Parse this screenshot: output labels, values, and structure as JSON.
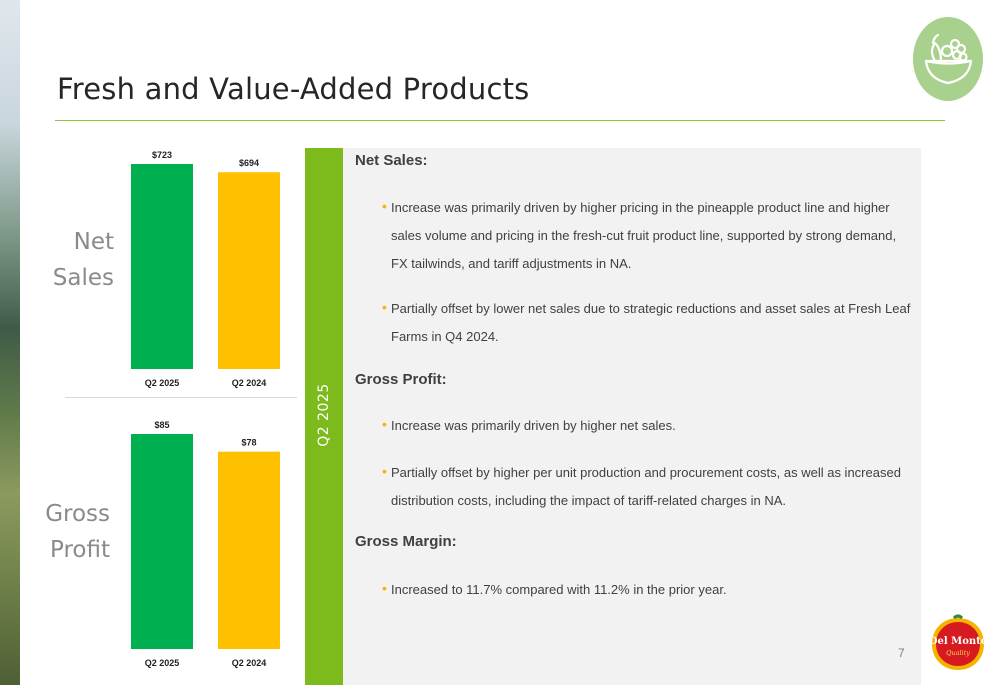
{
  "slide": {
    "title": "Fresh and Value-Added Products",
    "page_number": "7",
    "period_label": "Q2 2025",
    "net_sales_label_line1": "Net",
    "net_sales_label_line2": "Sales",
    "gross_profit_label_line1": "Gross",
    "gross_profit_label_line2": "Profit",
    "logo_text_line1": "Del Monte",
    "logo_text_line2": "Quality",
    "fruit_badge_icon": "fruit-bowl-icon",
    "accent_color": "#8dc63f"
  },
  "details": {
    "sections": [
      {
        "heading": "Net Sales:",
        "bullets": [
          "Increase was primarily driven by higher pricing in the pineapple product line and higher sales volume and pricing in the fresh-cut fruit product line, supported by strong demand, FX tailwinds, and tariff adjustments in NA.",
          "Partially offset by lower net sales due to strategic reductions and asset sales at Fresh Leaf Farms in Q4 2024."
        ]
      },
      {
        "heading": "Gross Profit:",
        "bullets": [
          "Increase was primarily driven by higher net sales.",
          "Partially offset by higher per unit production and procurement costs, as well as increased distribution costs, including the impact of tariff-related charges in NA."
        ]
      },
      {
        "heading": "Gross Margin:",
        "bullets": [
          "Increased to 11.7% compared with 11.2% in the prior year."
        ]
      }
    ]
  },
  "chart_data": [
    {
      "type": "bar",
      "categories": [
        "Q2 2025",
        "Q2 2024"
      ],
      "values": [
        723,
        694
      ],
      "value_labels": [
        "$723",
        "$694"
      ],
      "colors": [
        "#00b050",
        "#ffc000"
      ],
      "ylim": [
        0,
        723
      ],
      "grid": false
    },
    {
      "type": "bar",
      "categories": [
        "Q2 2025",
        "Q2 2024"
      ],
      "values": [
        85,
        78
      ],
      "value_labels": [
        "$85",
        "$78"
      ],
      "colors": [
        "#00b050",
        "#ffc000"
      ],
      "ylim": [
        0,
        85
      ],
      "grid": false
    }
  ]
}
